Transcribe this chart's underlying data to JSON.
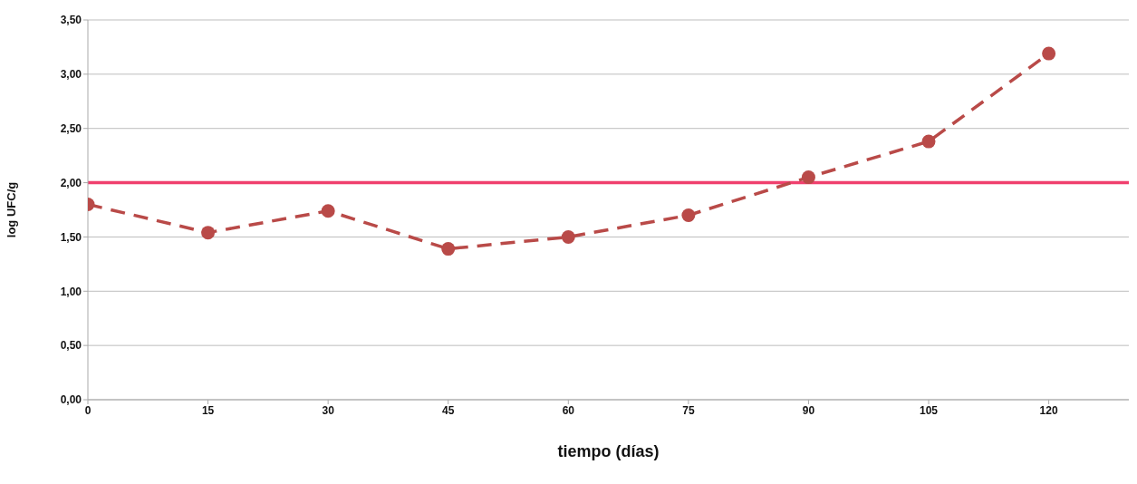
{
  "chart_data": {
    "type": "line",
    "xlabel": "tiempo (días)",
    "ylabel": "log UFC/g",
    "x": [
      0,
      15,
      30,
      45,
      60,
      75,
      90,
      105,
      120
    ],
    "series": [
      {
        "color": "#b94a48",
        "values": [
          1.8,
          1.54,
          1.74,
          1.39,
          1.5,
          1.7,
          2.05,
          2.38,
          3.19
        ]
      }
    ],
    "xlim": [
      0,
      130
    ],
    "xticks": [
      0,
      15,
      30,
      45,
      60,
      75,
      90,
      105,
      120
    ],
    "ylim": [
      0,
      3.5
    ],
    "yticks": [
      {
        "value": 0,
        "label": "0,00"
      },
      {
        "value": 0.5,
        "label": "0,50"
      },
      {
        "value": 1,
        "label": "1,00"
      },
      {
        "value": 1.5,
        "label": "1,50"
      },
      {
        "value": 2,
        "label": "2,00"
      },
      {
        "value": 2.5,
        "label": "2,50"
      },
      {
        "value": 3,
        "label": "3,00"
      },
      {
        "value": 3.5,
        "label": "3,50"
      }
    ],
    "ref_lines": [
      {
        "axis": "y",
        "value": 2,
        "color": "#f0406e"
      }
    ],
    "grid": "y",
    "marker": "circle",
    "line_style": "dashed",
    "legend": false
  }
}
